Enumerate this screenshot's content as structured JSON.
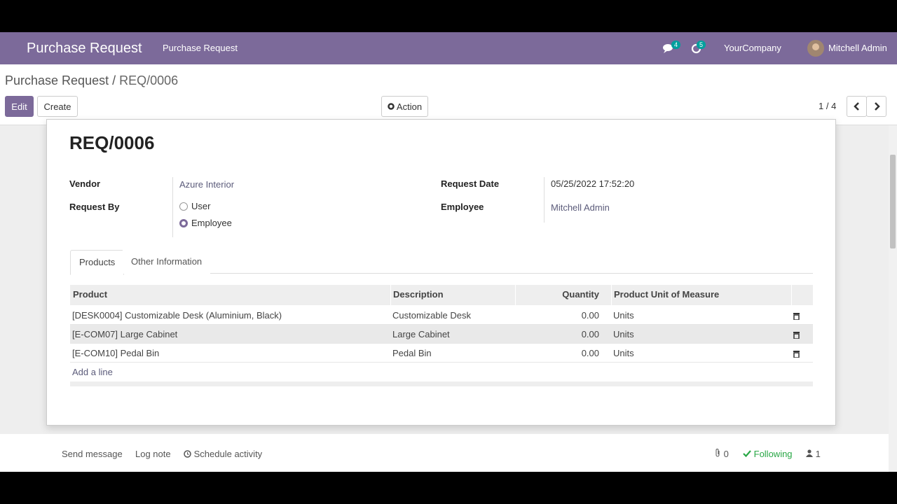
{
  "navbar": {
    "app": "Purchase Request",
    "menu": "Purchase Request",
    "messages": "4",
    "activities": "5",
    "company": "YourCompany",
    "user": "Mitchell Admin"
  },
  "breadcrumb": {
    "parent": "Purchase Request",
    "separator": "/",
    "current": "REQ/0006"
  },
  "controls": {
    "edit": "Edit",
    "create": "Create",
    "action": "Action",
    "pager": "1 / 4"
  },
  "form": {
    "title": "REQ/0006",
    "vendor": {
      "label": "Vendor",
      "value": "Azure Interior"
    },
    "request_by": {
      "label": "Request By",
      "options": [
        "User",
        "Employee"
      ],
      "selected": 1
    },
    "request_date": {
      "label": "Request Date",
      "value": "05/25/2022 17:52:20"
    },
    "employee": {
      "label": "Employee",
      "value": "Mitchell Admin"
    },
    "tabs": [
      "Products",
      "Other Information"
    ],
    "table": {
      "columns": [
        "Product",
        "Description",
        "Quantity",
        "Product Unit of Measure"
      ],
      "rows": [
        [
          "[DESK0004] Customizable Desk (Aluminium, Black)",
          "Customizable Desk",
          "0.00",
          "Units"
        ],
        [
          "[E-COM07] Large Cabinet",
          "Large Cabinet",
          "0.00",
          "Units"
        ],
        [
          "[E-COM10] Pedal Bin",
          "Pedal Bin",
          "0.00",
          "Units"
        ]
      ],
      "add_line": "Add a line"
    }
  },
  "chatter": {
    "send_message": "Send message",
    "log_note": "Log note",
    "schedule_activity": "Schedule activity",
    "attachments": "0",
    "following": "Following",
    "followers": "1"
  }
}
